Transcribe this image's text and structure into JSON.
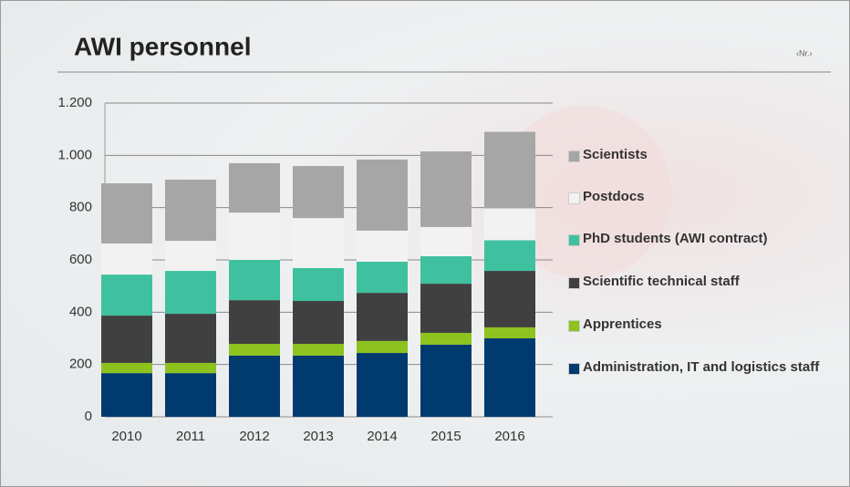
{
  "chart_data": {
    "type": "stacked-bar",
    "title": "AWI personnel",
    "page_number": "‹Nr.›",
    "categories": [
      "2010",
      "2011",
      "2012",
      "2013",
      "2014",
      "2015",
      "2016"
    ],
    "series": [
      {
        "name": "Administration, IT and logistics staff",
        "color": "#003a6e",
        "values": [
          167,
          167,
          234,
          234,
          244,
          276,
          300
        ]
      },
      {
        "name": "Apprentices",
        "color": "#8dc21f",
        "values": [
          39,
          39,
          45,
          45,
          46,
          45,
          42
        ]
      },
      {
        "name": "Scientific technical staff",
        "color": "#404040",
        "values": [
          181,
          188,
          167,
          164,
          184,
          188,
          216
        ]
      },
      {
        "name": "PhD students (AWI contract)",
        "color": "#3fc1a0",
        "values": [
          157,
          164,
          154,
          126,
          119,
          105,
          117
        ]
      },
      {
        "name": "Postdocs",
        "color": "#f2f2f2",
        "values": [
          119,
          115,
          181,
          191,
          119,
          112,
          122
        ]
      },
      {
        "name": "Scientists",
        "color": "#a6a6a6",
        "values": [
          230,
          234,
          189,
          199,
          272,
          289,
          293
        ]
      }
    ],
    "ylim": [
      0,
      1200
    ],
    "yticks": [
      0,
      200,
      400,
      600,
      800,
      {
        "value": 1000,
        "label": "1.000"
      },
      {
        "value": 1200,
        "label": "1.200"
      }
    ],
    "grid": true,
    "legend": "right"
  }
}
